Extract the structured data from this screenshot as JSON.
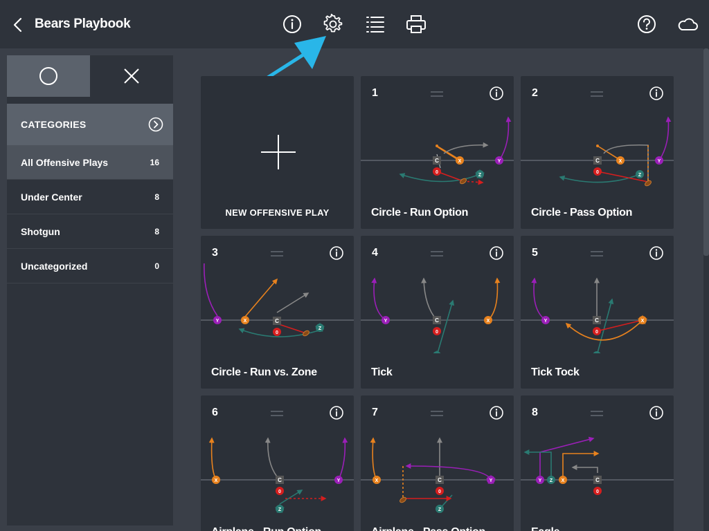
{
  "header": {
    "title": "Bears Playbook",
    "icons": [
      "back-icon",
      "info-icon",
      "settings-icon",
      "list-icon",
      "print-icon",
      "help-icon",
      "cloud-icon"
    ]
  },
  "sidebar": {
    "segments": [
      "circle-icon",
      "close-icon"
    ],
    "categories_title": "CATEGORIES",
    "categories": [
      {
        "label": "All Offensive Plays",
        "count": "16"
      },
      {
        "label": "Under Center",
        "count": "8"
      },
      {
        "label": "Shotgun",
        "count": "8"
      },
      {
        "label": "Uncategorized",
        "count": "0"
      }
    ]
  },
  "new_play": {
    "label": "NEW OFFENSIVE PLAY"
  },
  "plays": [
    {
      "num": "1",
      "name": "Circle - Run Option"
    },
    {
      "num": "2",
      "name": "Circle - Pass Option"
    },
    {
      "num": "3",
      "name": "Circle - Run vs. Zone"
    },
    {
      "num": "4",
      "name": "Tick"
    },
    {
      "num": "5",
      "name": "Tick Tock"
    },
    {
      "num": "6",
      "name": "Airplane - Run Option"
    },
    {
      "num": "7",
      "name": "Airplane - Pass Option"
    },
    {
      "num": "8",
      "name": "Eagle"
    }
  ],
  "players": {
    "center": "C",
    "qb": "0",
    "x": "X",
    "y": "Y",
    "z": "Z"
  },
  "colors": {
    "accent": "#29b6e8",
    "x": "#e8821e",
    "y": "#9b1fb8",
    "z": "#2a7a72",
    "qb": "#d61e1e",
    "center": "#555555"
  }
}
